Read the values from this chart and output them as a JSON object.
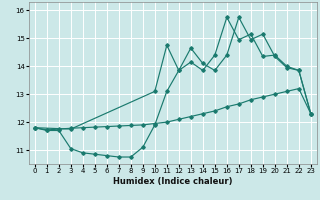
{
  "xlabel": "Humidex (Indice chaleur)",
  "x_ticks": [
    0,
    1,
    2,
    3,
    4,
    5,
    6,
    7,
    8,
    9,
    10,
    11,
    12,
    13,
    14,
    15,
    16,
    17,
    18,
    19,
    20,
    21,
    22,
    23
  ],
  "ylim": [
    10.5,
    16.3
  ],
  "xlim": [
    -0.5,
    23.5
  ],
  "yticks": [
    11,
    12,
    13,
    14,
    15,
    16
  ],
  "bg_color": "#cce8e8",
  "grid_color": "#ffffff",
  "line_color": "#1a7a6e",
  "line1_x": [
    0,
    1,
    2,
    3,
    4,
    5,
    6,
    7,
    8,
    9,
    10,
    11,
    12,
    13,
    14,
    15,
    16,
    17,
    18,
    19,
    20,
    21,
    22,
    23
  ],
  "line1_y": [
    11.8,
    11.7,
    11.7,
    11.05,
    10.9,
    10.85,
    10.8,
    10.75,
    10.75,
    11.1,
    11.9,
    13.1,
    13.85,
    14.65,
    14.1,
    13.85,
    14.4,
    15.75,
    14.95,
    15.15,
    14.35,
    13.95,
    13.85,
    12.3
  ],
  "line2_x": [
    0,
    1,
    2,
    3,
    4,
    5,
    6,
    7,
    8,
    9,
    10,
    11,
    12,
    13,
    14,
    15,
    16,
    17,
    18,
    19,
    20,
    21,
    22,
    23
  ],
  "line2_y": [
    11.8,
    11.72,
    11.75,
    11.78,
    11.8,
    11.82,
    11.84,
    11.86,
    11.88,
    11.9,
    11.95,
    12.0,
    12.1,
    12.2,
    12.3,
    12.4,
    12.55,
    12.65,
    12.8,
    12.9,
    13.0,
    13.1,
    13.2,
    12.3
  ],
  "line3_x": [
    0,
    3,
    10,
    11,
    12,
    13,
    14,
    15,
    16,
    17,
    18,
    19,
    20,
    21,
    22,
    23
  ],
  "line3_y": [
    11.8,
    11.75,
    13.1,
    14.75,
    13.85,
    14.15,
    13.85,
    14.4,
    15.75,
    14.95,
    15.15,
    14.35,
    14.4,
    14.0,
    13.85,
    12.3
  ]
}
